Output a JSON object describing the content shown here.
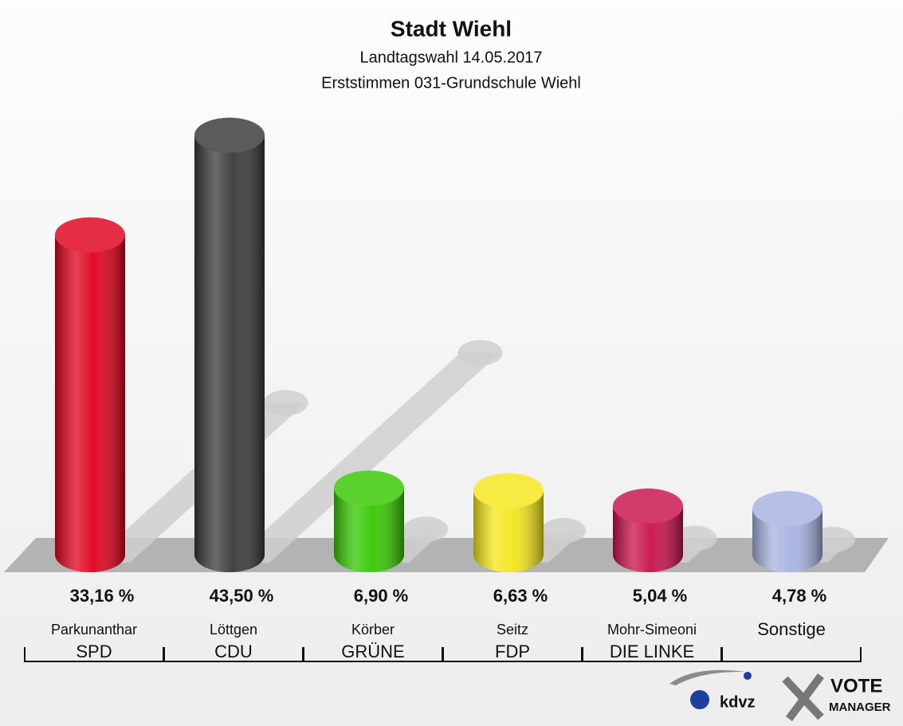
{
  "chart_data": {
    "type": "bar",
    "title": "Stadt Wiehl",
    "subtitle": [
      "Landtagswahl 14.05.2017",
      "Erststimmen 031-Grundschule Wiehl"
    ],
    "categories": [
      "Parkunanthar",
      "Löttgen",
      "Körber",
      "Seitz",
      "Mohr-Simeoni",
      "Sonstige"
    ],
    "parties": [
      "SPD",
      "CDU",
      "GRÜNE",
      "FDP",
      "DIE LINKE",
      null
    ],
    "values": [
      33.16,
      43.5,
      6.9,
      6.63,
      5.04,
      4.78
    ],
    "value_labels": [
      "33,16 %",
      "43,50 %",
      "6,90 %",
      "6,63 %",
      "5,04 %",
      "4,78 %"
    ],
    "colors": [
      "#e0001b",
      "#383838",
      "#35c800",
      "#f5e61a",
      "#c8104a",
      "#a7b3e2"
    ],
    "logos": [
      "kdvz",
      "VOTE",
      "MANAGER"
    ]
  }
}
